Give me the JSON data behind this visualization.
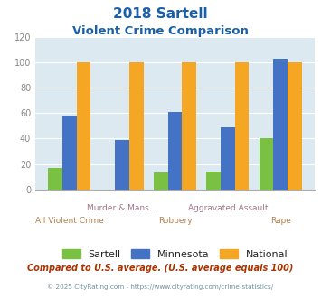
{
  "title_line1": "2018 Sartell",
  "title_line2": "Violent Crime Comparison",
  "categories": [
    "All Violent Crime",
    "Murder & Mans...",
    "Robbery",
    "Aggravated Assault",
    "Rape"
  ],
  "sartell": [
    17,
    0,
    13,
    14,
    40
  ],
  "minnesota": [
    58,
    39,
    61,
    49,
    103
  ],
  "national": [
    100,
    100,
    100,
    100,
    100
  ],
  "color_sartell": "#7ac143",
  "color_minnesota": "#4472c4",
  "color_national": "#f5a623",
  "ylim": [
    0,
    120
  ],
  "yticks": [
    0,
    20,
    40,
    60,
    80,
    100,
    120
  ],
  "bg_color": "#dce9f0",
  "note": "Compared to U.S. average. (U.S. average equals 100)",
  "footer": "© 2025 CityRating.com - https://www.cityrating.com/crime-statistics/",
  "title_color": "#1a5fa8",
  "xlabel_color_top": "#a0788a",
  "xlabel_color_bot": "#b08050",
  "note_color": "#aa3300",
  "footer_color": "#7090a0",
  "legend_label_color": "#222222"
}
